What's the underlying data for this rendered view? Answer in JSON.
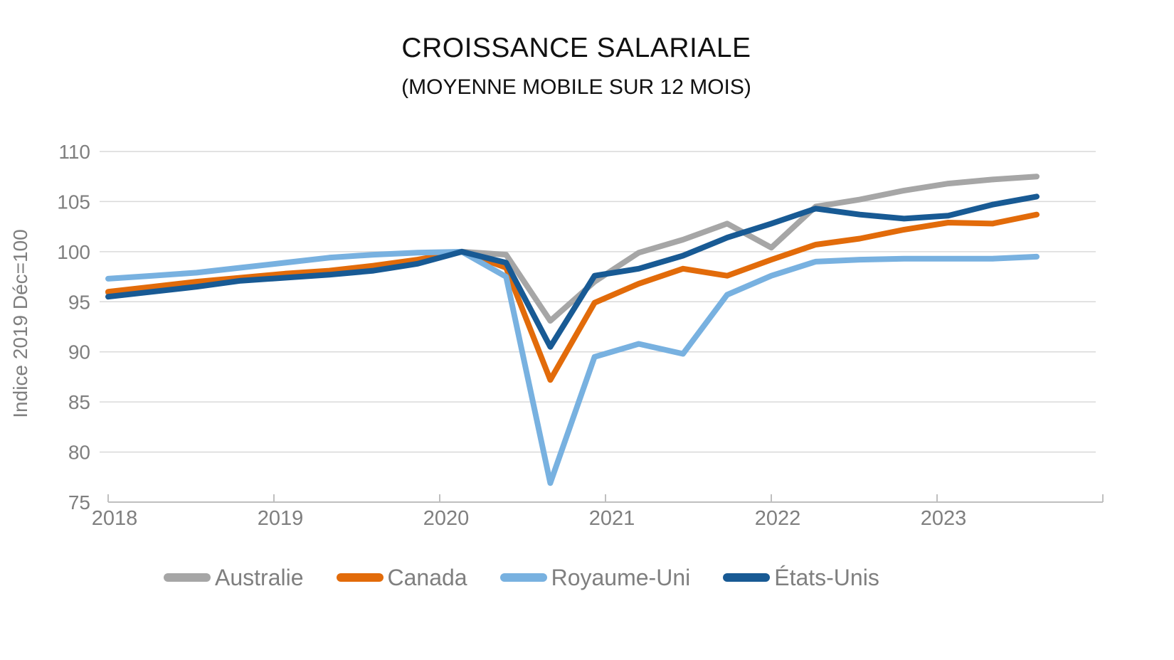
{
  "title": "CROISSANCE SALARIALE",
  "subtitle": "(MOYENNE MOBILE SUR 12 MOIS)",
  "colors": {
    "gridline": "#d9d9d9",
    "axis": "#bfbfbf",
    "tick_label": "#7f7f7f",
    "title_text": "#111111",
    "legend_text": "#7f7f7f"
  },
  "chart_data": {
    "type": "line",
    "title": "CROISSANCE SALARIALE",
    "subtitle": "(MOYENNE MOBILE SUR 12 MOIS)",
    "xlabel": "",
    "ylabel": "Indice 2019 Déc=100",
    "ylim": [
      75,
      110
    ],
    "yticks": [
      75,
      80,
      85,
      90,
      95,
      100,
      105,
      110
    ],
    "xticks": [
      "2018",
      "2019",
      "2020",
      "2021",
      "2022",
      "2023"
    ],
    "grid": "horizontal",
    "legend_position": "bottom",
    "x_frequency": "quarterly",
    "x": [
      "2018-Q1",
      "2018-Q2",
      "2018-Q3",
      "2018-Q4",
      "2019-Q1",
      "2019-Q2",
      "2019-Q3",
      "2019-Q4",
      "2020-Q1",
      "2020-Q2",
      "2020-Q3",
      "2020-Q4",
      "2021-Q1",
      "2021-Q2",
      "2021-Q3",
      "2021-Q4",
      "2022-Q1",
      "2022-Q2",
      "2022-Q3",
      "2022-Q4",
      "2023-Q1",
      "2023-Q2"
    ],
    "series": [
      {
        "name": "Australie",
        "color": "#a6a6a6",
        "values": [
          95.9,
          96.4,
          96.9,
          97.3,
          97.7,
          98.0,
          98.4,
          99.1,
          100.0,
          99.7,
          93.1,
          97.0,
          99.9,
          101.2,
          102.8,
          100.4,
          104.5,
          105.2,
          106.1,
          106.8,
          107.2,
          107.5
        ]
      },
      {
        "name": "Canada",
        "color": "#e26b0a",
        "values": [
          96.0,
          96.5,
          97.0,
          97.4,
          97.8,
          98.1,
          98.6,
          99.2,
          100.0,
          98.4,
          87.2,
          94.9,
          96.8,
          98.3,
          97.6,
          99.2,
          100.7,
          101.3,
          102.2,
          102.9,
          102.8,
          103.7
        ]
      },
      {
        "name": "Royaume-Uni",
        "color": "#78b1e0",
        "values": [
          97.3,
          97.6,
          97.9,
          98.4,
          98.9,
          99.4,
          99.7,
          99.9,
          100.0,
          97.5,
          76.9,
          89.5,
          90.8,
          89.8,
          95.7,
          97.6,
          99.0,
          99.2,
          99.3,
          99.3,
          99.3,
          99.5
        ]
      },
      {
        "name": "États-Unis",
        "color": "#185a94",
        "values": [
          95.5,
          96.0,
          96.5,
          97.1,
          97.4,
          97.7,
          98.1,
          98.8,
          100.0,
          98.9,
          90.5,
          97.6,
          98.3,
          99.6,
          101.4,
          102.8,
          104.3,
          103.7,
          103.3,
          103.6,
          104.7,
          105.5
        ]
      }
    ]
  }
}
